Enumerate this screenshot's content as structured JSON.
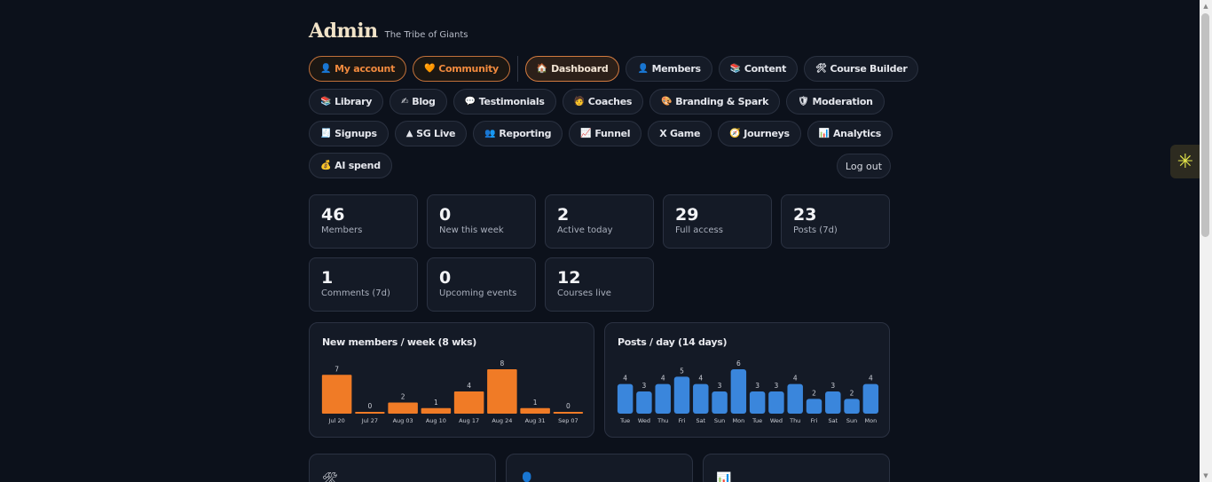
{
  "header": {
    "title": "Admin",
    "subtitle": "The Tribe of Giants"
  },
  "nav": {
    "row1": [
      {
        "label": "My account",
        "icon": "👤",
        "icon_name": "person-icon",
        "style": "orange"
      },
      {
        "label": "Community",
        "icon": "🧡",
        "icon_name": "heart-icon",
        "style": "orange"
      },
      {
        "label": "Dashboard",
        "icon": "🏠",
        "icon_name": "house-icon",
        "style": "active"
      },
      {
        "label": "Members",
        "icon": "👤",
        "icon_name": "person-icon",
        "style": ""
      },
      {
        "label": "Content",
        "icon": "📚",
        "icon_name": "books-icon",
        "style": ""
      },
      {
        "label": "Course Builder",
        "icon": "🛠",
        "icon_name": "tools-icon",
        "style": ""
      }
    ],
    "row2": [
      {
        "label": "Library",
        "icon": "📚",
        "icon_name": "books-icon"
      },
      {
        "label": "Blog",
        "icon": "✍",
        "icon_name": "writing-hand-icon"
      },
      {
        "label": "Testimonials",
        "icon": "💬",
        "icon_name": "speech-bubble-icon"
      },
      {
        "label": "Coaches",
        "icon": "🧑",
        "icon_name": "coach-icon"
      },
      {
        "label": "Branding & Spark",
        "icon": "🎨",
        "icon_name": "palette-icon"
      },
      {
        "label": "Moderation",
        "icon": "🛡",
        "icon_name": "shield-icon"
      }
    ],
    "row3": [
      {
        "label": "Signups",
        "icon": "🧾",
        "icon_name": "signups-icon"
      },
      {
        "label": "SG Live",
        "icon": "▲",
        "icon_name": "triangle-icon"
      },
      {
        "label": "Reporting",
        "icon": "👥",
        "icon_name": "people-icon"
      },
      {
        "label": "Funnel",
        "icon": "📈",
        "icon_name": "chart-up-icon"
      },
      {
        "label": "X Game",
        "icon": "",
        "icon_name": ""
      },
      {
        "label": "Journeys",
        "icon": "🧭",
        "icon_name": "compass-icon"
      },
      {
        "label": "Analytics",
        "icon": "📊",
        "icon_name": "bar-chart-icon"
      }
    ],
    "row4": [
      {
        "label": "AI spend",
        "icon": "💰",
        "icon_name": "money-bag-icon"
      }
    ],
    "logout": "Log out"
  },
  "stats": [
    {
      "value": "46",
      "label": "Members"
    },
    {
      "value": "0",
      "label": "New this week"
    },
    {
      "value": "2",
      "label": "Active today"
    },
    {
      "value": "29",
      "label": "Full access"
    },
    {
      "value": "23",
      "label": "Posts (7d)"
    },
    {
      "value": "1",
      "label": "Comments (7d)"
    },
    {
      "value": "0",
      "label": "Upcoming events"
    },
    {
      "value": "12",
      "label": "Courses live"
    }
  ],
  "chart_data": [
    {
      "type": "bar",
      "title": "New members / week (8 wks)",
      "categories": [
        "Jul 20",
        "Jul 27",
        "Aug 03",
        "Aug 10",
        "Aug 17",
        "Aug 24",
        "Aug 31",
        "Sep 07"
      ],
      "values": [
        7,
        0,
        2,
        1,
        4,
        8,
        1,
        0
      ],
      "color": "#f07b26",
      "ylim": [
        0,
        8
      ]
    },
    {
      "type": "bar",
      "title": "Posts / day (14 days)",
      "categories": [
        "Tue",
        "Wed",
        "Thu",
        "Fri",
        "Sat",
        "Sun",
        "Mon",
        "Tue",
        "Wed",
        "Thu",
        "Fri",
        "Sat",
        "Sun",
        "Mon"
      ],
      "values": [
        4,
        3,
        4,
        5,
        4,
        3,
        6,
        3,
        3,
        4,
        2,
        3,
        2,
        4
      ],
      "color": "#3a86dc",
      "ylim": [
        0,
        6
      ]
    }
  ],
  "cards": [
    {
      "icon": "🛠",
      "icon_name": "tools-icon"
    },
    {
      "icon": "👤",
      "icon_name": "person-icon"
    },
    {
      "icon": "📊",
      "icon_name": "bar-chart-icon"
    }
  ],
  "side_widget": {
    "icon": "✳",
    "icon_name": "spark-icon"
  }
}
